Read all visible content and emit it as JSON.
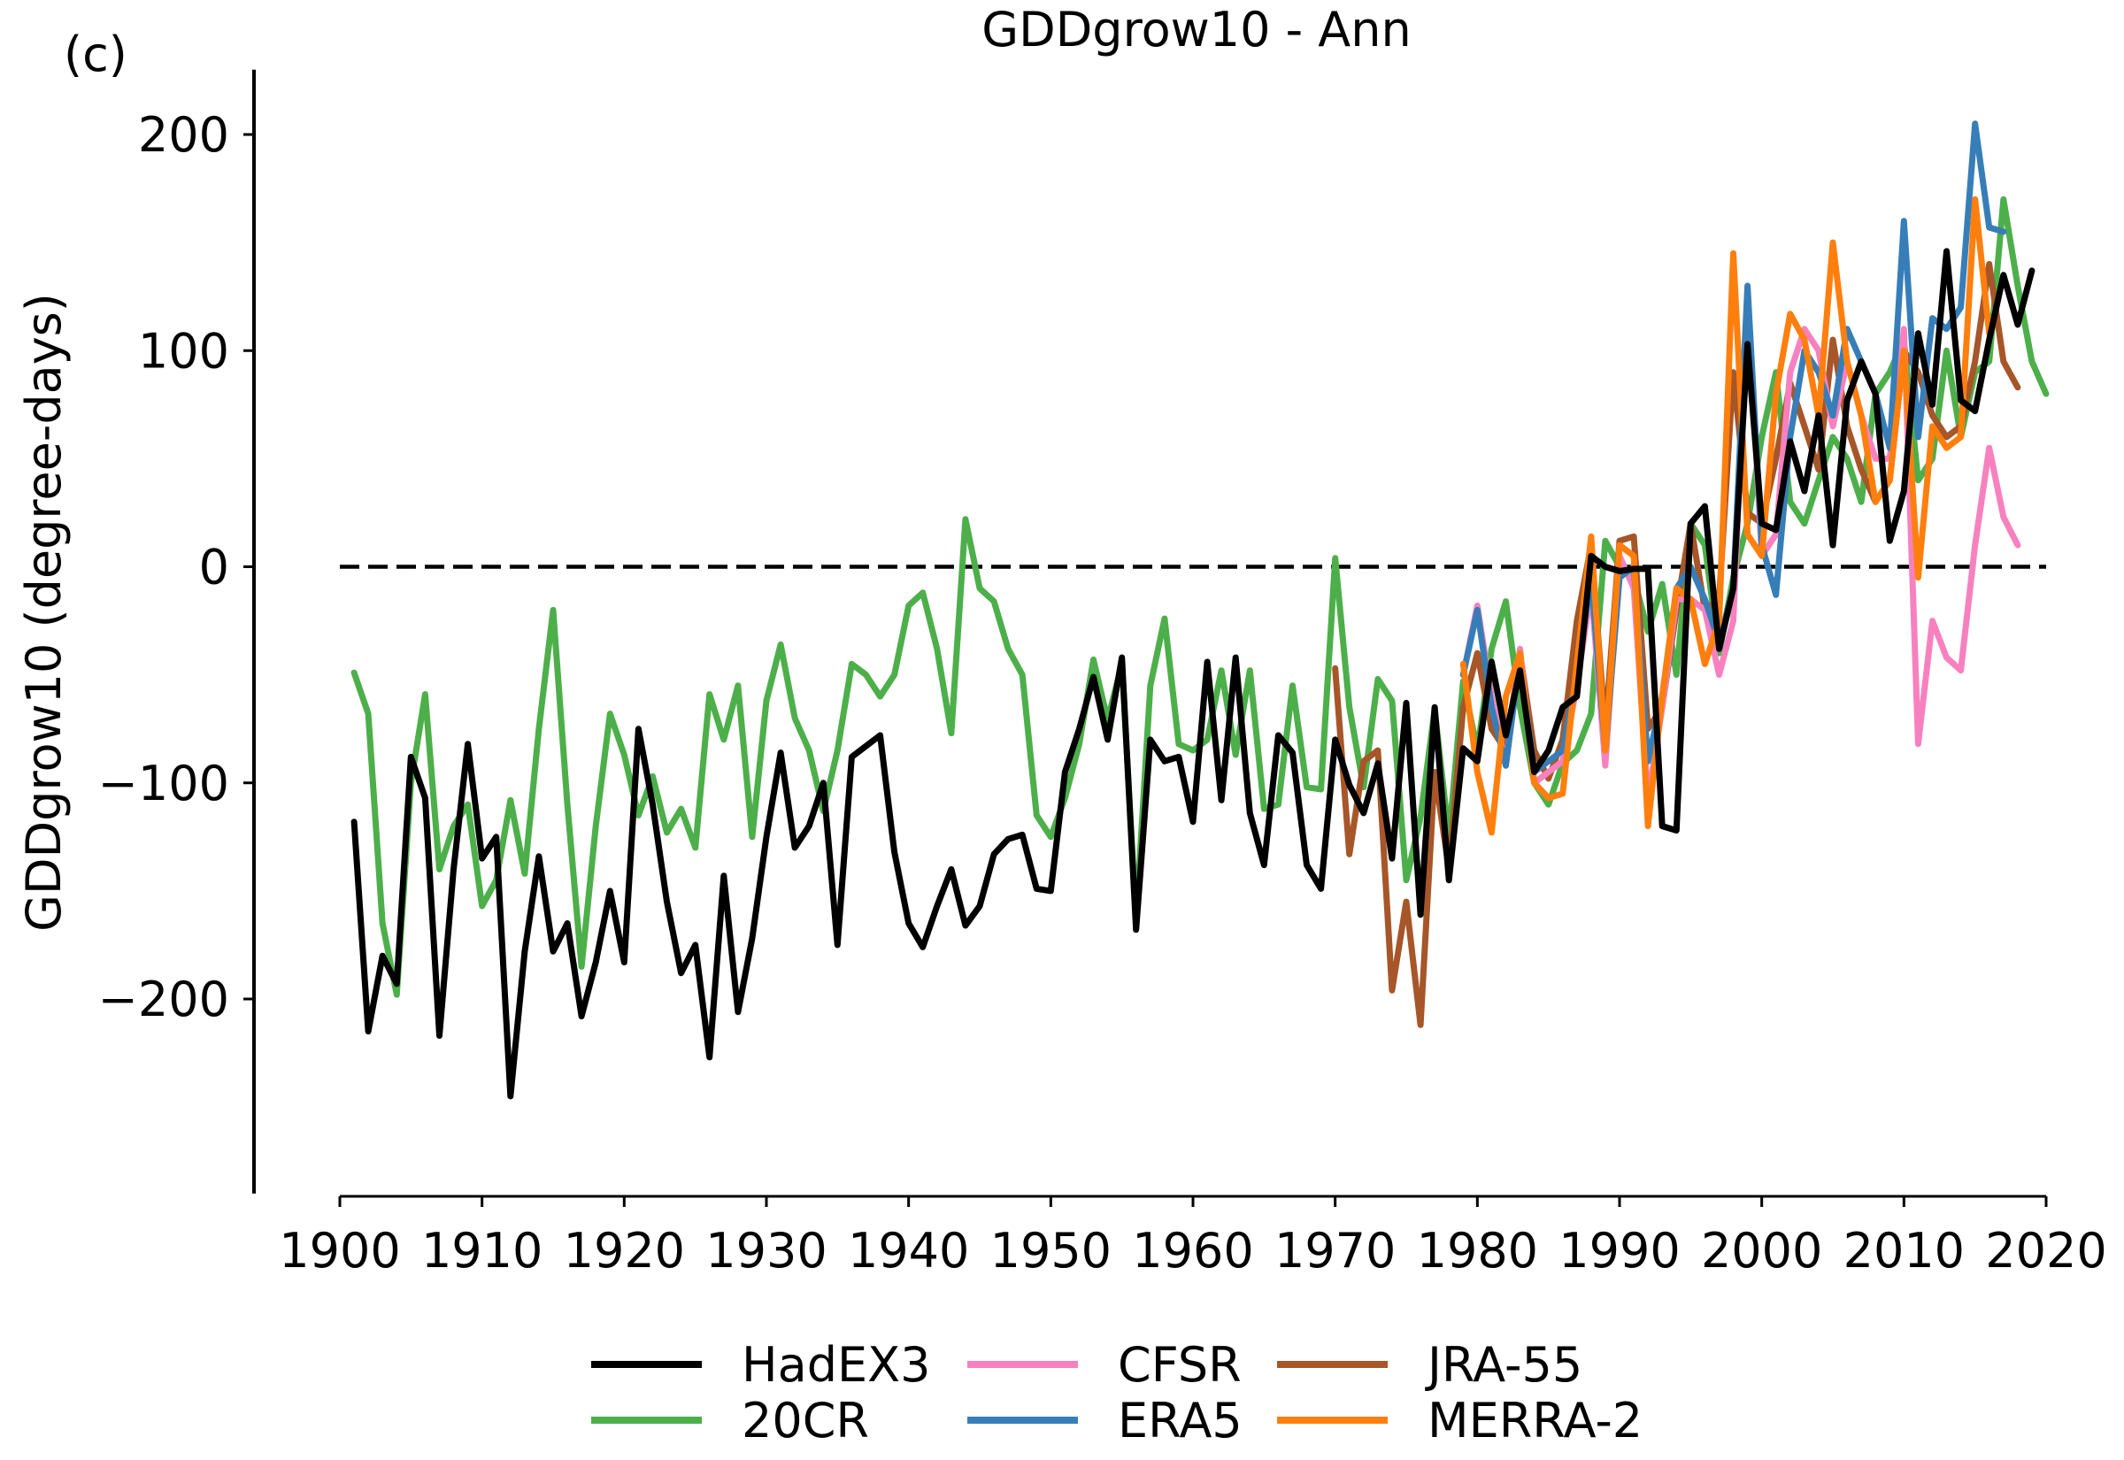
{
  "panel_label": "(c)",
  "chart_data": {
    "type": "line",
    "title": "GDDgrow10 - Ann",
    "xlabel": "",
    "ylabel": "GDDgrow10 (degree-days)",
    "xlim": [
      1900,
      2020
    ],
    "ylim": [
      -290,
      230
    ],
    "xticks": [
      1900,
      1910,
      1920,
      1930,
      1940,
      1950,
      1960,
      1970,
      1980,
      1990,
      2000,
      2010,
      2020
    ],
    "yticks": [
      -200,
      -100,
      0,
      100,
      200
    ],
    "ytick_labels": [
      "−200",
      "−100",
      "0",
      "100",
      "200"
    ],
    "reference_line": {
      "y": 0,
      "style": "dashed",
      "color": "#000000"
    },
    "grid": false,
    "legend_position": "bottom-center",
    "series": [
      {
        "name": "20CR",
        "color": "#4daf4a",
        "x_start": 1901,
        "values": [
          -49,
          -68,
          -165,
          -198,
          -100,
          -59,
          -140,
          -120,
          -110,
          -157,
          -145,
          -108,
          -142,
          -75,
          -20,
          -110,
          -185,
          -120,
          -68,
          -87,
          -115,
          -97,
          -123,
          -112,
          -130,
          -59,
          -80,
          -55,
          -125,
          -62,
          -36,
          -70,
          -85,
          -113,
          -85,
          -45,
          -50,
          -60,
          -50,
          -18,
          -12,
          -38,
          -77,
          22,
          -10,
          -16,
          -38,
          -50,
          -115,
          -125,
          -107,
          -82,
          -43,
          -71,
          -45,
          -163,
          -55,
          -24,
          -82,
          -85,
          -80,
          -48,
          -87,
          -48,
          -112,
          -110,
          -55,
          -102,
          -103,
          4,
          -65,
          -102,
          -52,
          -62,
          -145,
          -116,
          -66,
          -125,
          -53,
          -85,
          -38,
          -16,
          -65,
          -100,
          -110,
          -91,
          -85,
          -68,
          12,
          0,
          -5,
          -30,
          -8,
          -50,
          20,
          10,
          -40,
          -5,
          20,
          60,
          90,
          30,
          20,
          40,
          60,
          50,
          30,
          80,
          90,
          105,
          40,
          50,
          100,
          60,
          90,
          95,
          170,
          130,
          95,
          80
        ]
      },
      {
        "name": "JRA-55",
        "color": "#a65628",
        "x_start": 1970,
        "values": [
          -47,
          -133,
          -90,
          -85,
          -196,
          -155,
          -212,
          -95,
          -140,
          -65,
          -40,
          -75,
          -85,
          -40,
          -85,
          -98,
          -80,
          -25,
          10,
          -75,
          12,
          14,
          -75,
          -65,
          -20,
          20,
          -20,
          -15,
          90,
          25,
          20,
          50,
          85,
          65,
          45,
          105,
          65,
          45,
          30,
          40,
          100,
          90,
          70,
          60,
          65,
          95,
          140,
          95,
          83
        ]
      },
      {
        "name": "CFSR",
        "color": "#f781bf",
        "x_start": 1979,
        "values": [
          -50,
          -18,
          -60,
          -92,
          -38,
          -100,
          -95,
          -90,
          -55,
          -10,
          -92,
          5,
          -10,
          -108,
          -65,
          -15,
          -15,
          -20,
          -50,
          -25,
          125,
          5,
          15,
          90,
          110,
          100,
          65,
          95,
          70,
          50,
          50,
          110,
          -82,
          -25,
          -42,
          -48,
          10,
          55,
          23,
          10
        ]
      },
      {
        "name": "ERA5",
        "color": "#377eb8",
        "x_start": 1979,
        "values": [
          -50,
          -20,
          -65,
          -92,
          -42,
          -95,
          -90,
          -85,
          -50,
          -5,
          -85,
          -5,
          0,
          -90,
          -60,
          -10,
          0,
          -15,
          -35,
          -10,
          130,
          10,
          -13,
          60,
          100,
          90,
          70,
          110,
          95,
          80,
          55,
          160,
          60,
          115,
          110,
          120,
          205,
          157,
          155
        ]
      },
      {
        "name": "MERRA-2",
        "color": "#ff7f0e",
        "x_start": 1979,
        "values": [
          -45,
          -95,
          -123,
          -60,
          -40,
          -100,
          -107,
          -105,
          -45,
          14,
          -85,
          10,
          5,
          -120,
          -60,
          -10,
          -15,
          -45,
          -25,
          145,
          15,
          5,
          80,
          117,
          105,
          70,
          150,
          95,
          70,
          30,
          40,
          100,
          -5,
          65,
          55,
          60,
          170,
          108
        ]
      },
      {
        "name": "HadEX3",
        "color": "#000000",
        "x_start": 1901,
        "values": [
          -118,
          -215,
          -180,
          -193,
          -88,
          -107,
          -217,
          -140,
          -82,
          -135,
          -125,
          -245,
          -178,
          -134,
          -178,
          -165,
          -208,
          -183,
          -150,
          -183,
          -75,
          -110,
          -155,
          -188,
          -175,
          -227,
          -143,
          -206,
          -172,
          -125,
          -86,
          -130,
          -120,
          -100,
          -175,
          -88,
          -83,
          -78,
          -132,
          -165,
          -176,
          -157,
          -140,
          -166,
          -157,
          -133,
          -126,
          -124,
          -149,
          -150,
          -95,
          -75,
          -51,
          -80,
          -42,
          -168,
          -80,
          -90,
          -88,
          -118,
          -44,
          -108,
          -42,
          -114,
          -138,
          -78,
          -86,
          -138,
          -149,
          -80,
          -101,
          -114,
          -91,
          -135,
          -63,
          -161,
          -65,
          -145,
          -84,
          -90,
          -44,
          -78,
          -48,
          -95,
          -85,
          -65,
          -60,
          5,
          0,
          -2,
          -1,
          -1,
          -120,
          -122,
          20,
          28,
          -38,
          -10,
          103,
          20,
          17,
          58,
          35,
          70,
          10,
          77,
          95,
          80,
          12,
          35,
          108,
          75,
          146,
          77,
          72,
          105,
          135,
          112,
          137
        ]
      }
    ],
    "legend": {
      "columns": [
        [
          "HadEX3",
          "20CR"
        ],
        [
          "CFSR",
          "ERA5"
        ],
        [
          "JRA-55",
          "MERRA-2"
        ]
      ]
    }
  }
}
